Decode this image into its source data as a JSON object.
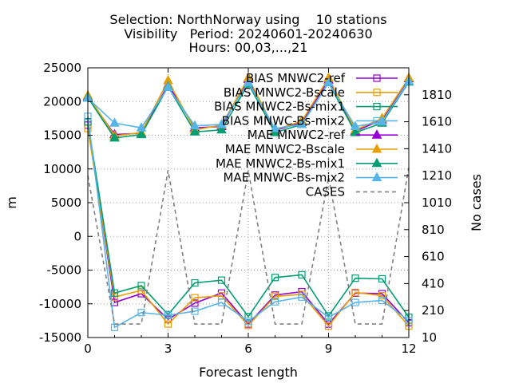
{
  "chart_data": {
    "type": "line",
    "title_lines": [
      "Selection: NorthNorway using    10 stations",
      "Visibility   Period: 20240601-20240630",
      "Hours: 00,03,...,21"
    ],
    "xlabel": "Forecast length",
    "ylabel": "m",
    "y2label": "No cases",
    "xlim": [
      0,
      12
    ],
    "ylim": [
      -15000,
      25000
    ],
    "y2lim": [
      10,
      2010
    ],
    "x_ticks": [
      0,
      3,
      6,
      9,
      12
    ],
    "y_ticks": [
      -15000,
      -10000,
      -5000,
      0,
      5000,
      10000,
      15000,
      20000,
      25000
    ],
    "y2_ticks": [
      10,
      210,
      410,
      610,
      810,
      1010,
      1210,
      1410,
      1610,
      1810
    ],
    "grid": true,
    "legend_position": "top-right",
    "x": [
      0,
      1,
      2,
      3,
      4,
      5,
      6,
      7,
      8,
      9,
      10,
      11,
      12
    ],
    "series": [
      {
        "name": "BIAS MNWC2-ref",
        "axis": "y",
        "color": "#9400d3",
        "marker": "open-square",
        "dash": false,
        "values": [
          16500,
          -9800,
          -8500,
          -12300,
          -9900,
          -8400,
          -13000,
          -8700,
          -8200,
          -13000,
          -8400,
          -8500,
          -12800
        ]
      },
      {
        "name": "BIAS MNWC2-Bscale",
        "axis": "y",
        "color": "#e69f00",
        "marker": "open-square",
        "dash": false,
        "values": [
          16000,
          -9000,
          -8000,
          -13000,
          -9100,
          -8800,
          -13200,
          -8900,
          -8600,
          -13300,
          -8300,
          -8800,
          -13300
        ]
      },
      {
        "name": "BIAS MNWC2-Bs-mix1",
        "axis": "y",
        "color": "#009e73",
        "marker": "open-square",
        "dash": false,
        "values": [
          17000,
          -8400,
          -7300,
          -11600,
          -6900,
          -6500,
          -11900,
          -6100,
          -5700,
          -11800,
          -6200,
          -6300,
          -12000
        ]
      },
      {
        "name": "BIAS MNWC-Bs-mix2",
        "axis": "y",
        "color": "#56b4e9",
        "marker": "open-square",
        "dash": false,
        "values": [
          17800,
          -13500,
          -11300,
          -11700,
          -11100,
          -9800,
          -12600,
          -9700,
          -9000,
          -12000,
          -9800,
          -9500,
          -12500
        ]
      },
      {
        "name": "MAE MNWC2-ref",
        "axis": "y",
        "color": "#9400d3",
        "marker": "filled-triangle",
        "dash": false,
        "values": [
          20700,
          15100,
          15300,
          22500,
          16100,
          16300,
          23300,
          15700,
          16900,
          23200,
          15600,
          17300,
          23400
        ]
      },
      {
        "name": "MAE MNWC2-Bscale",
        "axis": "y",
        "color": "#e69f00",
        "marker": "filled-triangle",
        "dash": false,
        "values": [
          20900,
          14900,
          15400,
          23100,
          15800,
          16500,
          23500,
          15800,
          17100,
          23500,
          15800,
          17500,
          23500
        ]
      },
      {
        "name": "MAE MNWC2-Bs-mix1",
        "axis": "y",
        "color": "#009e73",
        "marker": "filled-triangle",
        "dash": false,
        "values": [
          20600,
          14600,
          15100,
          22200,
          15500,
          15800,
          22600,
          15400,
          16600,
          22800,
          15400,
          16800,
          22900
        ]
      },
      {
        "name": "MAE MNWC-Bs-mix2",
        "axis": "y",
        "color": "#56b4e9",
        "marker": "filled-triangle",
        "dash": false,
        "values": [
          20500,
          16800,
          16100,
          22100,
          16400,
          16600,
          22800,
          16000,
          16600,
          22800,
          16300,
          17000,
          23000
        ]
      },
      {
        "name": "CASES",
        "axis": "y2",
        "color": "#808080",
        "marker": "none",
        "dash": true,
        "values": [
          1210,
          110,
          110,
          1250,
          110,
          110,
          1250,
          110,
          110,
          1200,
          110,
          110,
          1270
        ]
      }
    ]
  }
}
